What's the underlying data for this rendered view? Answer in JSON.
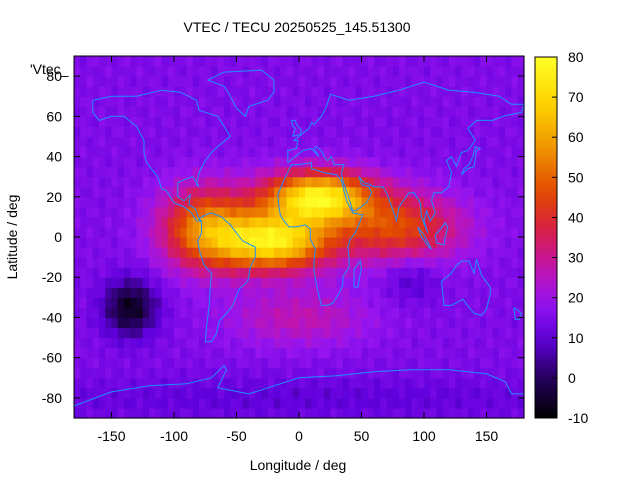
{
  "chart_data": {
    "type": "heatmap",
    "title": "VTEC / TECU 20250525_145.51300",
    "xlabel": "Longitude / deg",
    "ylabel": "Latitude / deg",
    "legend_entry": "'Vtec_",
    "xlim": [
      -180,
      180
    ],
    "ylim": [
      -90,
      90
    ],
    "xticks": [
      -150,
      -100,
      -50,
      0,
      50,
      100,
      150
    ],
    "xtick_labels": [
      "-150",
      "-100",
      "-50",
      "0",
      "50",
      "100",
      "150"
    ],
    "yticks": [
      -80,
      -60,
      -40,
      -20,
      0,
      20,
      40,
      60,
      80
    ],
    "ytick_labels": [
      "-80",
      "-60",
      "-40",
      "-20",
      "0",
      "20",
      "40",
      "60",
      "80"
    ],
    "colorbar": {
      "range": [
        -10,
        80
      ],
      "ticks": [
        -10,
        0,
        10,
        20,
        30,
        40,
        50,
        60,
        70,
        80
      ],
      "tick_labels": [
        "-10",
        "0",
        "10",
        "20",
        "30",
        "40",
        "50",
        "60",
        "70",
        "80"
      ]
    },
    "grid_resolution_deg": 5,
    "background_vtec": 15,
    "features": [
      {
        "name": "equatorial-anomaly-crest-north-africa",
        "lon": 15,
        "lat": 20,
        "vtec": 60,
        "sigma_lon": 30,
        "sigma_lat": 9
      },
      {
        "name": "equatorial-anomaly-south-atlantic",
        "lon": -20,
        "lat": -2,
        "vtec": 58,
        "sigma_lon": 32,
        "sigma_lat": 10
      },
      {
        "name": "equatorial-band-americas",
        "lon": -75,
        "lat": 5,
        "vtec": 38,
        "sigma_lon": 25,
        "sigma_lat": 14
      },
      {
        "name": "equatorial-band-indian-ocean",
        "lon": 80,
        "lat": 5,
        "vtec": 30,
        "sigma_lon": 35,
        "sigma_lat": 12
      },
      {
        "name": "southern-atlantic-trough",
        "lon": 0,
        "lat": -40,
        "vtec": 12,
        "sigma_lon": 40,
        "sigma_lat": 10
      },
      {
        "name": "pacific-depletion",
        "lon": -135,
        "lat": -35,
        "vtec": -22,
        "sigma_lon": 15,
        "sigma_lat": 10
      },
      {
        "name": "indian-ocean-depletion",
        "lon": 90,
        "lat": -20,
        "vtec": -8,
        "sigma_lon": 15,
        "sigma_lat": 8
      },
      {
        "name": "polar-south-depletion",
        "lon": 0,
        "lat": -80,
        "vtec": -5,
        "sigma_lon": 200,
        "sigma_lat": 8
      }
    ],
    "coastlines": [
      {
        "name": "north-america",
        "points": [
          [
            -165,
            68
          ],
          [
            -150,
            70
          ],
          [
            -130,
            70
          ],
          [
            -110,
            73
          ],
          [
            -95,
            72
          ],
          [
            -82,
            68
          ],
          [
            -80,
            63
          ],
          [
            -75,
            62
          ],
          [
            -65,
            60
          ],
          [
            -60,
            55
          ],
          [
            -55,
            50
          ],
          [
            -65,
            45
          ],
          [
            -70,
            42
          ],
          [
            -75,
            38
          ],
          [
            -80,
            32
          ],
          [
            -82,
            26
          ],
          [
            -80,
            25
          ],
          [
            -85,
            30
          ],
          [
            -90,
            29
          ],
          [
            -97,
            27
          ],
          [
            -97,
            20
          ],
          [
            -92,
            18
          ],
          [
            -87,
            21
          ],
          [
            -88,
            16
          ],
          [
            -83,
            14
          ],
          [
            -80,
            9
          ],
          [
            -78,
            8
          ],
          [
            -82,
            8
          ],
          [
            -86,
            12
          ],
          [
            -92,
            15
          ],
          [
            -100,
            17
          ],
          [
            -106,
            23
          ],
          [
            -110,
            24
          ],
          [
            -113,
            30
          ],
          [
            -117,
            33
          ],
          [
            -122,
            37
          ],
          [
            -124,
            42
          ],
          [
            -124,
            48
          ],
          [
            -130,
            55
          ],
          [
            -140,
            60
          ],
          [
            -150,
            60
          ],
          [
            -160,
            58
          ],
          [
            -165,
            62
          ],
          [
            -165,
            68
          ]
        ]
      },
      {
        "name": "south-america",
        "points": [
          [
            -80,
            9
          ],
          [
            -75,
            11
          ],
          [
            -70,
            12
          ],
          [
            -62,
            10
          ],
          [
            -55,
            6
          ],
          [
            -50,
            2
          ],
          [
            -45,
            -2
          ],
          [
            -35,
            -5
          ],
          [
            -35,
            -10
          ],
          [
            -39,
            -15
          ],
          [
            -41,
            -22
          ],
          [
            -48,
            -26
          ],
          [
            -53,
            -34
          ],
          [
            -58,
            -38
          ],
          [
            -64,
            -42
          ],
          [
            -66,
            -48
          ],
          [
            -70,
            -52
          ],
          [
            -75,
            -52
          ],
          [
            -74,
            -45
          ],
          [
            -72,
            -35
          ],
          [
            -71,
            -25
          ],
          [
            -70,
            -18
          ],
          [
            -76,
            -14
          ],
          [
            -80,
            -6
          ],
          [
            -81,
            -2
          ],
          [
            -78,
            2
          ],
          [
            -78,
            7
          ],
          [
            -80,
            9
          ]
        ]
      },
      {
        "name": "africa",
        "points": [
          [
            -17,
            21
          ],
          [
            -16,
            15
          ],
          [
            -15,
            11
          ],
          [
            -12,
            8
          ],
          [
            -8,
            5
          ],
          [
            -2,
            5
          ],
          [
            5,
            6
          ],
          [
            9,
            4
          ],
          [
            9,
            -1
          ],
          [
            13,
            -6
          ],
          [
            12,
            -12
          ],
          [
            12,
            -17
          ],
          [
            15,
            -27
          ],
          [
            18,
            -34
          ],
          [
            22,
            -34
          ],
          [
            27,
            -33
          ],
          [
            32,
            -28
          ],
          [
            35,
            -24
          ],
          [
            35,
            -20
          ],
          [
            40,
            -15
          ],
          [
            40,
            -10
          ],
          [
            39,
            -5
          ],
          [
            41,
            -1
          ],
          [
            45,
            2
          ],
          [
            51,
            11
          ],
          [
            43,
            12
          ],
          [
            38,
            18
          ],
          [
            34,
            28
          ],
          [
            30,
            31
          ],
          [
            20,
            32
          ],
          [
            10,
            34
          ],
          [
            10,
            37
          ],
          [
            0,
            36
          ],
          [
            -6,
            36
          ],
          [
            -10,
            31
          ],
          [
            -13,
            27
          ],
          [
            -17,
            21
          ]
        ]
      },
      {
        "name": "eurasia",
        "points": [
          [
            -9,
            37
          ],
          [
            -9,
            43
          ],
          [
            -2,
            44
          ],
          [
            -1,
            48
          ],
          [
            -4,
            48
          ],
          [
            2,
            51
          ],
          [
            8,
            54
          ],
          [
            10,
            57
          ],
          [
            12,
            56
          ],
          [
            18,
            60
          ],
          [
            22,
            65
          ],
          [
            25,
            71
          ],
          [
            40,
            68
          ],
          [
            60,
            70
          ],
          [
            80,
            73
          ],
          [
            100,
            77
          ],
          [
            120,
            73
          ],
          [
            140,
            72
          ],
          [
            160,
            70
          ],
          [
            170,
            66
          ],
          [
            180,
            66
          ],
          [
            178,
            62
          ],
          [
            163,
            60
          ],
          [
            155,
            58
          ],
          [
            142,
            58
          ],
          [
            135,
            54
          ],
          [
            141,
            48
          ],
          [
            135,
            43
          ],
          [
            130,
            42
          ],
          [
            127,
            37
          ],
          [
            126,
            35
          ],
          [
            122,
            40
          ],
          [
            118,
            38
          ],
          [
            122,
            32
          ],
          [
            120,
            25
          ],
          [
            114,
            22
          ],
          [
            108,
            22
          ],
          [
            106,
            18
          ],
          [
            109,
            12
          ],
          [
            105,
            8
          ],
          [
            102,
            13
          ],
          [
            100,
            8
          ],
          [
            103,
            2
          ],
          [
            98,
            10
          ],
          [
            97,
            17
          ],
          [
            92,
            22
          ],
          [
            88,
            22
          ],
          [
            80,
            15
          ],
          [
            78,
            8
          ],
          [
            73,
            17
          ],
          [
            70,
            22
          ],
          [
            67,
            25
          ],
          [
            60,
            25
          ],
          [
            57,
            26
          ],
          [
            52,
            27
          ],
          [
            48,
            30
          ],
          [
            50,
            26
          ],
          [
            56,
            25
          ],
          [
            58,
            22
          ],
          [
            54,
            17
          ],
          [
            45,
            13
          ],
          [
            43,
            13
          ],
          [
            39,
            21
          ],
          [
            35,
            28
          ],
          [
            34,
            32
          ],
          [
            36,
            36
          ],
          [
            28,
            36
          ],
          [
            26,
            40
          ],
          [
            23,
            38
          ],
          [
            20,
            40
          ],
          [
            19,
            42
          ],
          [
            14,
            45
          ],
          [
            12,
            44
          ],
          [
            16,
            40
          ],
          [
            10,
            44
          ],
          [
            3,
            43
          ],
          [
            -9,
            37
          ]
        ]
      },
      {
        "name": "australia",
        "points": [
          [
            114,
            -22
          ],
          [
            116,
            -34
          ],
          [
            122,
            -34
          ],
          [
            131,
            -31
          ],
          [
            136,
            -35
          ],
          [
            140,
            -38
          ],
          [
            146,
            -39
          ],
          [
            150,
            -36
          ],
          [
            153,
            -28
          ],
          [
            153,
            -25
          ],
          [
            146,
            -19
          ],
          [
            142,
            -11
          ],
          [
            140,
            -18
          ],
          [
            136,
            -12
          ],
          [
            130,
            -12
          ],
          [
            126,
            -14
          ],
          [
            122,
            -18
          ],
          [
            114,
            -22
          ]
        ]
      },
      {
        "name": "greenland",
        "points": [
          [
            -73,
            78
          ],
          [
            -60,
            82
          ],
          [
            -30,
            83
          ],
          [
            -20,
            78
          ],
          [
            -20,
            72
          ],
          [
            -25,
            68
          ],
          [
            -40,
            65
          ],
          [
            -43,
            60
          ],
          [
            -50,
            64
          ],
          [
            -55,
            70
          ],
          [
            -60,
            75
          ],
          [
            -73,
            78
          ]
        ]
      },
      {
        "name": "antarctica-front",
        "points": [
          [
            -180,
            -84
          ],
          [
            -150,
            -77
          ],
          [
            -120,
            -74
          ],
          [
            -90,
            -73
          ],
          [
            -70,
            -70
          ],
          [
            -60,
            -64
          ],
          [
            -58,
            -66
          ],
          [
            -65,
            -75
          ],
          [
            -40,
            -78
          ],
          [
            -20,
            -74
          ],
          [
            0,
            -70
          ],
          [
            30,
            -69
          ],
          [
            60,
            -67
          ],
          [
            90,
            -66
          ],
          [
            120,
            -66
          ],
          [
            150,
            -68
          ],
          [
            165,
            -72
          ],
          [
            170,
            -78
          ],
          [
            180,
            -78
          ]
        ]
      },
      {
        "name": "great-britain",
        "points": [
          [
            -5,
            50
          ],
          [
            1,
            51
          ],
          [
            2,
            53
          ],
          [
            -2,
            56
          ],
          [
            -3,
            58
          ],
          [
            -6,
            58
          ],
          [
            -5,
            55
          ],
          [
            -3,
            54
          ],
          [
            -5,
            50
          ]
        ]
      },
      {
        "name": "japan",
        "points": [
          [
            130,
            31
          ],
          [
            135,
            34
          ],
          [
            140,
            35
          ],
          [
            141,
            39
          ],
          [
            142,
            43
          ],
          [
            145,
            44
          ],
          [
            141,
            45
          ],
          [
            139,
            40
          ],
          [
            136,
            36
          ],
          [
            132,
            34
          ],
          [
            130,
            31
          ]
        ]
      },
      {
        "name": "madagascar",
        "points": [
          [
            44,
            -25
          ],
          [
            47,
            -25
          ],
          [
            50,
            -15
          ],
          [
            49,
            -12
          ],
          [
            44,
            -16
          ],
          [
            44,
            -25
          ]
        ]
      },
      {
        "name": "borneo",
        "points": [
          [
            109,
            1
          ],
          [
            112,
            3
          ],
          [
            117,
            7
          ],
          [
            119,
            5
          ],
          [
            117,
            0
          ],
          [
            116,
            -4
          ],
          [
            110,
            -3
          ],
          [
            109,
            1
          ]
        ]
      },
      {
        "name": "sumatra",
        "points": [
          [
            95,
            5
          ],
          [
            100,
            1
          ],
          [
            106,
            -6
          ],
          [
            104,
            -5
          ],
          [
            98,
            0
          ],
          [
            95,
            5
          ]
        ]
      },
      {
        "name": "new-zealand",
        "points": [
          [
            172,
            -35
          ],
          [
            178,
            -38
          ],
          [
            176,
            -41
          ],
          [
            173,
            -41
          ],
          [
            172,
            -35
          ]
        ]
      }
    ]
  }
}
